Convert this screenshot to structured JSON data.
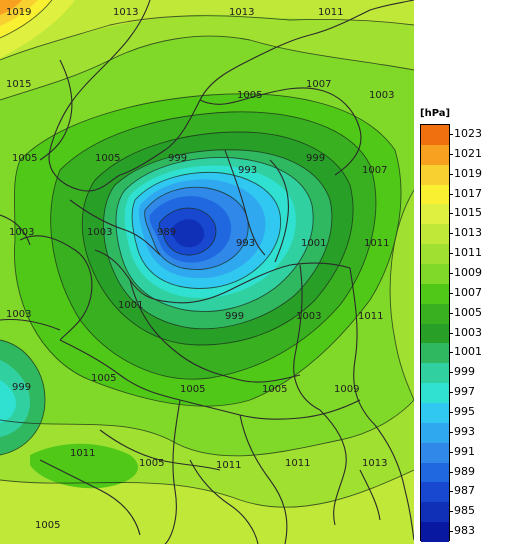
{
  "map": {
    "unit_label": "[hPa]",
    "legend_levels": [
      "1023",
      "1021",
      "1019",
      "1017",
      "1015",
      "1013",
      "1011",
      "1009",
      "1007",
      "1005",
      "1003",
      "1001",
      "999",
      "997",
      "995",
      "993",
      "991",
      "989",
      "987",
      "985",
      "983"
    ],
    "legend_colors": [
      "#f07010",
      "#f8a020",
      "#f8d030",
      "#f8f030",
      "#e0f040",
      "#c0e838",
      "#a0e030",
      "#80d828",
      "#50c818",
      "#38b020",
      "#28a028",
      "#30b860",
      "#30d0a0",
      "#30e0d0",
      "#30c8f0",
      "#30a8f0",
      "#3088e8",
      "#2068e0",
      "#1848d0",
      "#1030b8",
      "#0818a0"
    ],
    "isobar_labels": [
      {
        "text": "1019"
      },
      {
        "text": "1013"
      },
      {
        "text": "1013"
      },
      {
        "text": "1011"
      },
      {
        "text": "1015"
      },
      {
        "text": "1007"
      },
      {
        "text": "1005"
      },
      {
        "text": "1003"
      },
      {
        "text": "1005"
      },
      {
        "text": "1005"
      },
      {
        "text": "999"
      },
      {
        "text": "999"
      },
      {
        "text": "1007"
      },
      {
        "text": "993"
      },
      {
        "text": "1003"
      },
      {
        "text": "1003"
      },
      {
        "text": "989"
      },
      {
        "text": "993"
      },
      {
        "text": "1001"
      },
      {
        "text": "1011"
      },
      {
        "text": "1003"
      },
      {
        "text": "1001"
      },
      {
        "text": "999"
      },
      {
        "text": "1003"
      },
      {
        "text": "1011"
      },
      {
        "text": "999"
      },
      {
        "text": "1005"
      },
      {
        "text": "1005"
      },
      {
        "text": "1005"
      },
      {
        "text": "1009"
      },
      {
        "text": "1011"
      },
      {
        "text": "1005"
      },
      {
        "text": "1011"
      },
      {
        "text": "1011"
      },
      {
        "text": "1013"
      },
      {
        "text": "1005"
      }
    ]
  }
}
